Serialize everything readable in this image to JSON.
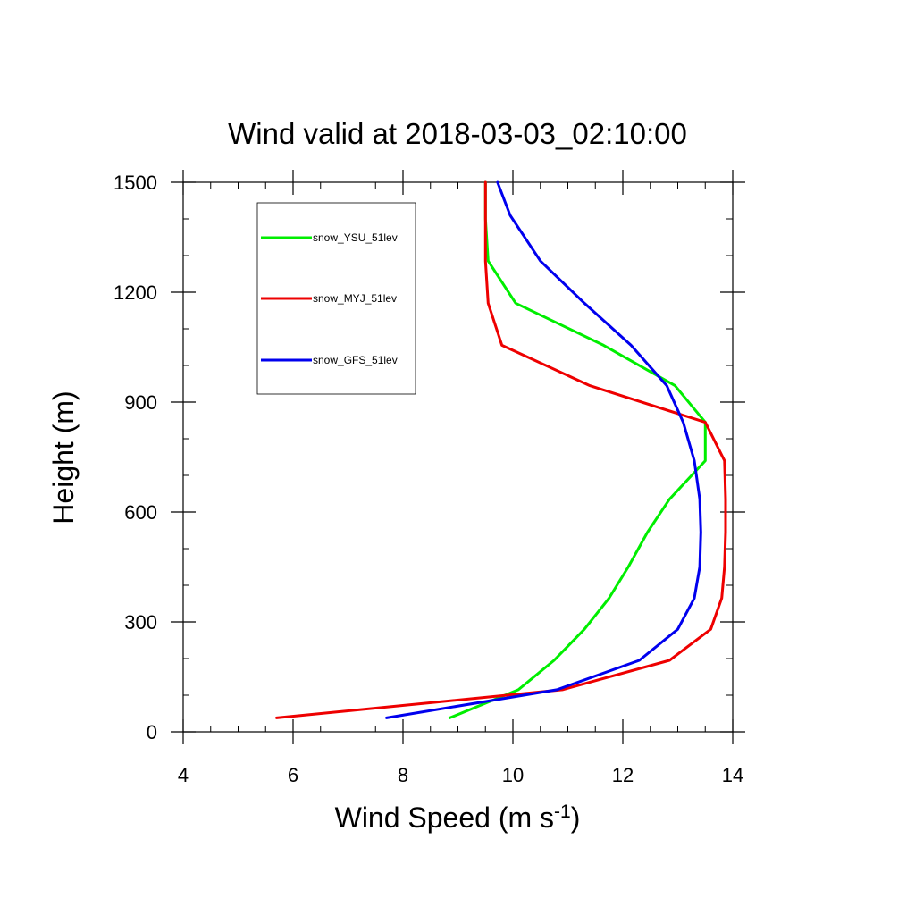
{
  "chart_data": {
    "type": "line",
    "title": "Wind valid at 2018-03-03_02:10:00",
    "xlabel": "Wind Speed (m s",
    "xlabel_sup": "-1",
    "xlabel_end": ")",
    "ylabel": "Height (m)",
    "xlim": [
      4,
      14
    ],
    "ylim": [
      0,
      1500
    ],
    "x_ticks": [
      4,
      6,
      8,
      10,
      12,
      14
    ],
    "y_ticks": [
      0,
      300,
      600,
      900,
      1200,
      1500
    ],
    "legend_placement": "top-left",
    "grid": false,
    "series": [
      {
        "name": "snow_YSU_51lev",
        "color": "#00ee00",
        "points": [
          [
            8.85,
            38
          ],
          [
            10.1,
            115
          ],
          [
            10.75,
            195
          ],
          [
            11.3,
            280
          ],
          [
            11.75,
            365
          ],
          [
            12.1,
            450
          ],
          [
            12.45,
            545
          ],
          [
            12.85,
            635
          ],
          [
            13.5,
            740
          ],
          [
            13.5,
            845
          ],
          [
            12.95,
            945
          ],
          [
            11.65,
            1055
          ],
          [
            10.05,
            1170
          ],
          [
            9.55,
            1285
          ],
          [
            9.5,
            1400
          ],
          [
            9.5,
            1500
          ]
        ]
      },
      {
        "name": "snow_MYJ_51lev",
        "color": "#ee0000",
        "points": [
          [
            5.7,
            38
          ],
          [
            10.9,
            115
          ],
          [
            12.85,
            195
          ],
          [
            13.6,
            280
          ],
          [
            13.8,
            365
          ],
          [
            13.85,
            450
          ],
          [
            13.87,
            545
          ],
          [
            13.87,
            635
          ],
          [
            13.85,
            740
          ],
          [
            13.5,
            845
          ],
          [
            11.4,
            945
          ],
          [
            9.8,
            1055
          ],
          [
            9.55,
            1170
          ],
          [
            9.5,
            1285
          ],
          [
            9.5,
            1400
          ],
          [
            9.5,
            1500
          ]
        ]
      },
      {
        "name": "snow_GFS_51lev",
        "color": "#0000ee",
        "points": [
          [
            7.7,
            38
          ],
          [
            10.8,
            115
          ],
          [
            12.3,
            195
          ],
          [
            13.0,
            280
          ],
          [
            13.3,
            365
          ],
          [
            13.4,
            450
          ],
          [
            13.42,
            545
          ],
          [
            13.4,
            635
          ],
          [
            13.3,
            740
          ],
          [
            13.1,
            845
          ],
          [
            12.8,
            945
          ],
          [
            12.15,
            1055
          ],
          [
            11.3,
            1170
          ],
          [
            10.5,
            1285
          ],
          [
            9.95,
            1410
          ],
          [
            9.72,
            1500
          ]
        ]
      }
    ]
  }
}
